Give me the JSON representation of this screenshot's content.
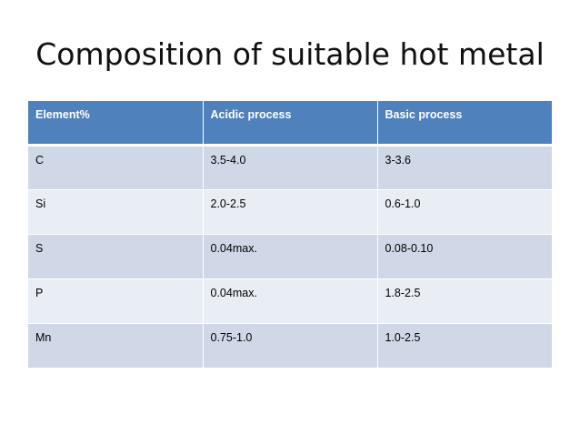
{
  "title": "Composition of suitable hot metal",
  "table": {
    "headers": [
      "Element%",
      "Acidic process",
      "Basic process"
    ],
    "rows": [
      [
        "C",
        "3.5-4.0",
        "3-3.6"
      ],
      [
        "Si",
        "2.0-2.5",
        "0.6-1.0"
      ],
      [
        "S",
        "0.04max.",
        "0.08-0.10"
      ],
      [
        "P",
        "0.04max.",
        "1.8-2.5"
      ],
      [
        "Mn",
        "0.75-1.0",
        "1.0-2.5"
      ]
    ]
  },
  "colors": {
    "header_bg": "#4f81bd",
    "row_odd_bg": "#d0d8e8",
    "row_even_bg": "#e9edf4"
  }
}
